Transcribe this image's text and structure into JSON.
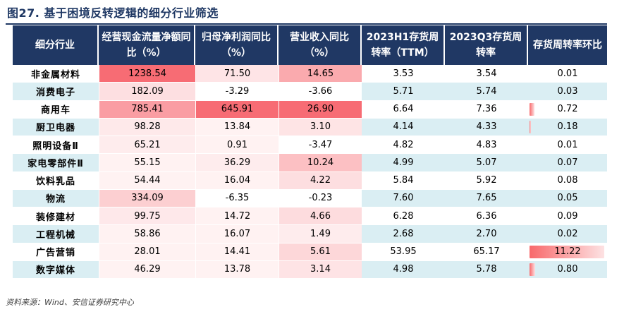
{
  "title": "图27. 基于困境反转逻辑的细分行业筛选",
  "source": "资料来源：Wind、安信证券研究中心",
  "colors": {
    "header_bg": "#203864",
    "alt_row": "#daeef3",
    "heat_max": "#f76c74",
    "bar": "#f8696b"
  },
  "table": {
    "headers": [
      "细分行业",
      "经营现金流量净额同比（%）",
      "归母净利润同比（%）",
      "营业收入同比（%）",
      "2023H1存货周转率（TTM）",
      "2023Q3存货周转率",
      "存货周转率环比"
    ],
    "rows": [
      [
        "非金属材料",
        "1238.54",
        "71.50",
        "14.65",
        "3.53",
        "3.54",
        "0.01"
      ],
      [
        "消费电子",
        "182.09",
        "-3.29",
        "-3.66",
        "5.71",
        "5.74",
        "0.03"
      ],
      [
        "商用车",
        "785.41",
        "645.91",
        "26.90",
        "6.64",
        "7.36",
        "0.72"
      ],
      [
        "厨卫电器",
        "98.28",
        "13.84",
        "3.10",
        "4.14",
        "4.33",
        "0.18"
      ],
      [
        "照明设备Ⅱ",
        "65.21",
        "0.91",
        "-3.47",
        "4.82",
        "4.83",
        "0.01"
      ],
      [
        "家电零部件Ⅱ",
        "55.15",
        "36.29",
        "10.24",
        "4.99",
        "5.07",
        "0.07"
      ],
      [
        "饮料乳品",
        "54.44",
        "16.04",
        "4.22",
        "5.84",
        "5.92",
        "0.08"
      ],
      [
        "物流",
        "334.09",
        "-6.35",
        "-0.23",
        "7.60",
        "7.65",
        "0.05"
      ],
      [
        "装修建材",
        "99.75",
        "14.72",
        "4.66",
        "6.28",
        "6.36",
        "0.09"
      ],
      [
        "工程机械",
        "58.86",
        "16.07",
        "1.49",
        "2.68",
        "2.70",
        "0.02"
      ],
      [
        "广告营销",
        "28.01",
        "14.41",
        "5.61",
        "53.95",
        "65.17",
        "11.22"
      ],
      [
        "数字媒体",
        "46.29",
        "13.78",
        "3.14",
        "4.98",
        "5.78",
        "0.80"
      ]
    ]
  }
}
